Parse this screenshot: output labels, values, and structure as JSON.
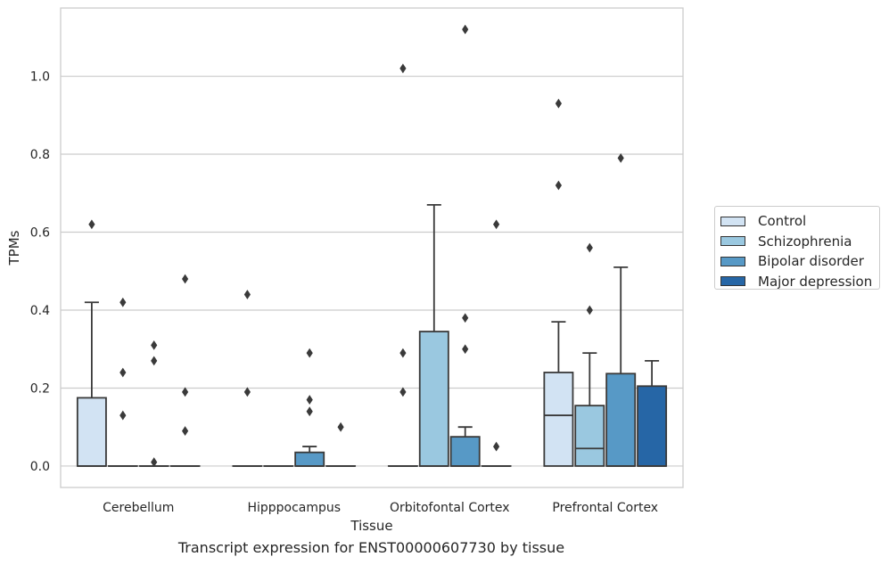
{
  "chart_data": {
    "type": "box",
    "caption": "Transcript expression for ENST00000607730 by tissue",
    "xlabel": "Tissue",
    "ylabel": "TPMs",
    "ylim": [
      -0.055,
      1.175
    ],
    "yticks": [
      0.0,
      0.2,
      0.4,
      0.6,
      0.8,
      1.0
    ],
    "ytick_labels": [
      "0.0",
      "0.2",
      "0.4",
      "0.6",
      "0.8",
      "1.0"
    ],
    "grid": "horizontal",
    "legend_position": "right",
    "categories": [
      "Cerebellum",
      "Hipppocampus",
      "Orbitofontal Cortex",
      "Prefrontal Cortex"
    ],
    "series": [
      {
        "name": "Control",
        "color": "#d2e3f3",
        "boxes": [
          {
            "q1": 0.0,
            "median": 0.0,
            "q3": 0.175,
            "whisker_low": 0.0,
            "whisker_high": 0.42,
            "outliers": [
              0.62
            ]
          },
          {
            "q1": 0.0,
            "median": 0.0,
            "q3": 0.0,
            "whisker_low": 0.0,
            "whisker_high": 0.0,
            "outliers": [
              0.44,
              0.19
            ]
          },
          {
            "q1": 0.0,
            "median": 0.0,
            "q3": 0.0,
            "whisker_low": 0.0,
            "whisker_high": 0.0,
            "outliers": [
              1.02,
              0.29,
              0.19
            ]
          },
          {
            "q1": 0.0,
            "median": 0.13,
            "q3": 0.24,
            "whisker_low": 0.0,
            "whisker_high": 0.37,
            "outliers": [
              0.93,
              0.72
            ]
          }
        ]
      },
      {
        "name": "Schizophrenia",
        "color": "#9ac8e0",
        "boxes": [
          {
            "q1": 0.0,
            "median": 0.0,
            "q3": 0.0,
            "whisker_low": 0.0,
            "whisker_high": 0.0,
            "outliers": [
              0.42,
              0.24,
              0.13
            ]
          },
          {
            "q1": 0.0,
            "median": 0.0,
            "q3": 0.0,
            "whisker_low": 0.0,
            "whisker_high": 0.0,
            "outliers": []
          },
          {
            "q1": 0.0,
            "median": 0.0,
            "q3": 0.345,
            "whisker_low": 0.0,
            "whisker_high": 0.67,
            "outliers": []
          },
          {
            "q1": 0.0,
            "median": 0.045,
            "q3": 0.155,
            "whisker_low": 0.0,
            "whisker_high": 0.29,
            "outliers": [
              0.56,
              0.4
            ]
          }
        ]
      },
      {
        "name": "Bipolar disorder",
        "color": "#5799c6",
        "boxes": [
          {
            "q1": 0.0,
            "median": 0.0,
            "q3": 0.0,
            "whisker_low": 0.0,
            "whisker_high": 0.0,
            "outliers": [
              0.31,
              0.27,
              0.01
            ]
          },
          {
            "q1": 0.0,
            "median": 0.0,
            "q3": 0.035,
            "whisker_low": 0.0,
            "whisker_high": 0.05,
            "outliers": [
              0.29,
              0.17,
              0.14
            ]
          },
          {
            "q1": 0.0,
            "median": 0.0,
            "q3": 0.075,
            "whisker_low": 0.0,
            "whisker_high": 0.1,
            "outliers": [
              1.12,
              0.38,
              0.3
            ]
          },
          {
            "q1": 0.0,
            "median": 0.0,
            "q3": 0.237,
            "whisker_low": 0.0,
            "whisker_high": 0.51,
            "outliers": [
              0.79
            ]
          }
        ]
      },
      {
        "name": "Major depression",
        "color": "#2666a6",
        "boxes": [
          {
            "q1": 0.0,
            "median": 0.0,
            "q3": 0.0,
            "whisker_low": 0.0,
            "whisker_high": 0.0,
            "outliers": [
              0.48,
              0.19,
              0.09
            ]
          },
          {
            "q1": 0.0,
            "median": 0.0,
            "q3": 0.0,
            "whisker_low": 0.0,
            "whisker_high": 0.0,
            "outliers": [
              0.1
            ]
          },
          {
            "q1": 0.0,
            "median": 0.0,
            "q3": 0.0,
            "whisker_low": 0.0,
            "whisker_high": 0.0,
            "outliers": [
              0.62,
              0.05
            ]
          },
          {
            "q1": 0.0,
            "median": 0.0,
            "q3": 0.205,
            "whisker_low": 0.0,
            "whisker_high": 0.27,
            "outliers": []
          }
        ]
      }
    ]
  }
}
